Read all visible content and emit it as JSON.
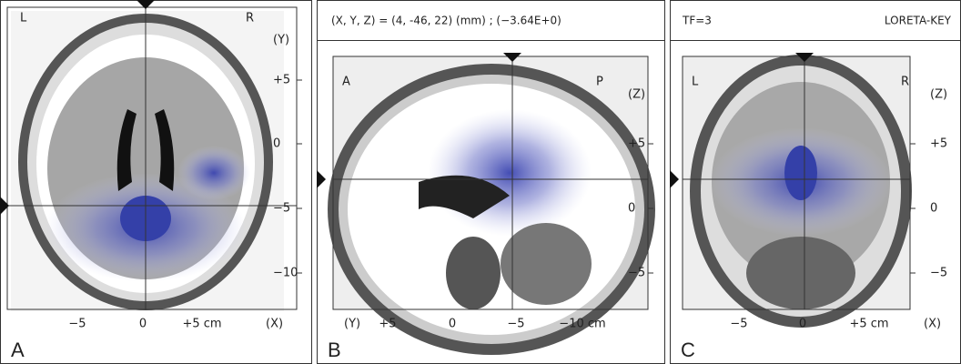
{
  "header": {
    "coordinates": "(X, Y, Z) = (4, -46, 22) (mm) ; (−3.64E+0)",
    "time_frame": "TF=3",
    "software": "LORETA-KEY"
  },
  "panels": [
    {
      "letter": "A",
      "left_corner": "L",
      "right_corner": "R",
      "right_axis": {
        "label": "(Y)",
        "ticks": [
          "+5",
          "0",
          "−5",
          "−10"
        ]
      },
      "bottom_axis": {
        "label": "(X)",
        "ticks": [
          "−5",
          "0",
          "+5 cm"
        ]
      }
    },
    {
      "letter": "B",
      "left_corner": "A",
      "right_corner": "P",
      "right_axis": {
        "label": "(Z)",
        "ticks": [
          "+5",
          "0",
          "−5"
        ]
      },
      "bottom_axis": {
        "label": "(Y)",
        "ticks": [
          "+5",
          "0",
          "−5",
          "−10 cm"
        ]
      }
    },
    {
      "letter": "C",
      "left_corner": "L",
      "right_corner": "R",
      "right_axis": {
        "label": "(Z)",
        "ticks": [
          "+5",
          "0",
          "−5"
        ]
      },
      "bottom_axis": {
        "label": "(X)",
        "ticks": [
          "−5",
          "0",
          "+5 cm"
        ]
      }
    }
  ]
}
